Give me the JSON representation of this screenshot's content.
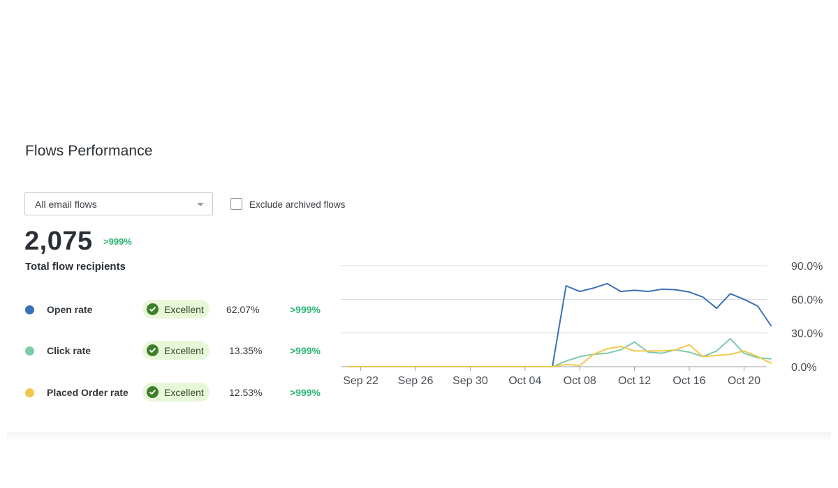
{
  "page": {
    "title": "Flows Performance"
  },
  "filters": {
    "flow_select_value": "All email flows",
    "exclude_archived_label": "Exclude archived flows",
    "exclude_archived_checked": false
  },
  "summary": {
    "total_value": "2,075",
    "total_change": ">999%",
    "total_label": "Total flow recipients"
  },
  "metrics": [
    {
      "label": "Open rate",
      "color": "#3a70b8",
      "badge": "Excellent",
      "value": "62.07%",
      "change": ">999%"
    },
    {
      "label": "Click rate",
      "color": "#7ecba8",
      "badge": "Excellent",
      "value": "13.35%",
      "change": ">999%"
    },
    {
      "label": "Placed Order rate",
      "color": "#f1c84b",
      "badge": "Excellent",
      "value": "12.53%",
      "change": ">999%"
    }
  ],
  "chart_data": {
    "type": "line",
    "x": [
      "Sep 21",
      "Sep 22",
      "Sep 23",
      "Sep 24",
      "Sep 25",
      "Sep 26",
      "Sep 27",
      "Sep 28",
      "Sep 29",
      "Sep 30",
      "Oct 01",
      "Oct 02",
      "Oct 03",
      "Oct 04",
      "Oct 05",
      "Oct 06",
      "Oct 07",
      "Oct 08",
      "Oct 09",
      "Oct 10",
      "Oct 11",
      "Oct 12",
      "Oct 13",
      "Oct 14",
      "Oct 15",
      "Oct 16",
      "Oct 17",
      "Oct 18",
      "Oct 19",
      "Oct 20",
      "Oct 21",
      "Oct 22"
    ],
    "x_tick_labels": [
      "Sep 22",
      "Sep 26",
      "Sep 30",
      "Oct 04",
      "Oct 08",
      "Oct 12",
      "Oct 16",
      "Oct 20"
    ],
    "y_tick_labels": [
      "0.0%",
      "30.0%",
      "60.0%",
      "90.0%"
    ],
    "ylim": [
      0,
      90
    ],
    "y_axis_position": "right",
    "grid": true,
    "series": [
      {
        "name": "Open rate",
        "color": "#3a70b8",
        "values": [
          0,
          0,
          0,
          0,
          0,
          0,
          0,
          0,
          0,
          0,
          0,
          0,
          0,
          0,
          0,
          0,
          72,
          67,
          70,
          74,
          67,
          68,
          67,
          69,
          68.5,
          66.5,
          62,
          52,
          65,
          60,
          54,
          36
        ]
      },
      {
        "name": "Click rate",
        "color": "#7ecba8",
        "values": [
          0,
          0,
          0,
          0,
          0,
          0,
          0,
          0,
          0,
          0,
          0,
          0,
          0,
          0,
          0,
          0,
          5,
          9,
          11,
          12,
          15,
          22,
          13,
          12,
          15,
          13,
          9,
          14,
          25,
          12,
          8,
          7
        ]
      },
      {
        "name": "Placed Order rate",
        "color": "#f1c84b",
        "values": [
          0,
          0,
          0,
          0,
          0,
          0,
          0,
          0,
          0,
          0,
          0,
          0,
          0,
          0,
          0,
          0,
          2,
          1,
          11,
          16,
          18,
          14,
          14,
          14,
          15,
          19.5,
          9,
          10,
          11,
          14,
          9,
          3
        ]
      }
    ]
  }
}
